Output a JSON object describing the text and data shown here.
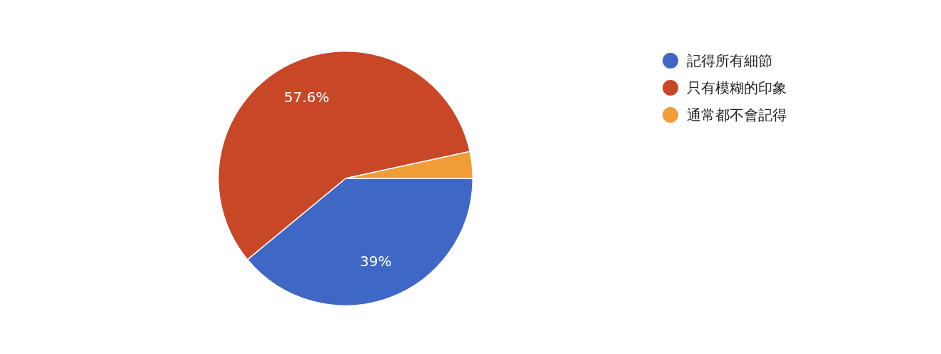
{
  "chart_data": {
    "type": "pie",
    "categories": [
      "記得所有細節",
      "只有模糊的印象",
      "通常都不會記得"
    ],
    "values": [
      39,
      57.6,
      3.4
    ],
    "colors": [
      "#3f67c5",
      "#c84727",
      "#f09d38"
    ],
    "value_labels": [
      "39%",
      "57.6%",
      null
    ],
    "legend": "top right"
  }
}
